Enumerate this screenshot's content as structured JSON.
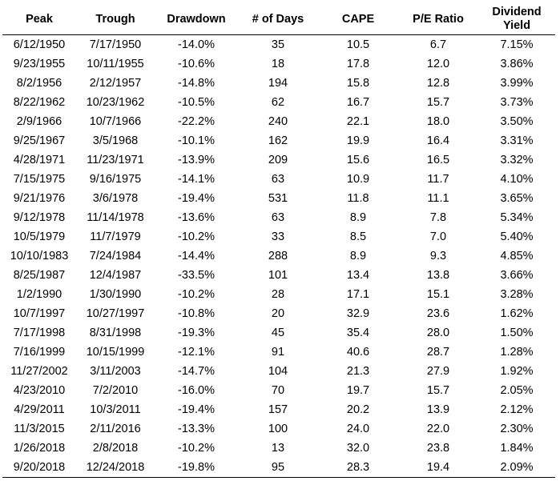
{
  "table": {
    "headers": [
      "Peak",
      "Trough",
      "Drawdown",
      "# of Days",
      "CAPE",
      "P/E Ratio",
      "Dividend Yield"
    ],
    "rows": [
      [
        "6/12/1950",
        "7/17/1950",
        "-14.0%",
        "35",
        "10.5",
        "6.7",
        "7.15%"
      ],
      [
        "9/23/1955",
        "10/11/1955",
        "-10.6%",
        "18",
        "17.8",
        "12.0",
        "3.86%"
      ],
      [
        "8/2/1956",
        "2/12/1957",
        "-14.8%",
        "194",
        "15.8",
        "12.8",
        "3.99%"
      ],
      [
        "8/22/1962",
        "10/23/1962",
        "-10.5%",
        "62",
        "16.7",
        "15.7",
        "3.73%"
      ],
      [
        "2/9/1966",
        "10/7/1966",
        "-22.2%",
        "240",
        "22.1",
        "18.0",
        "3.50%"
      ],
      [
        "9/25/1967",
        "3/5/1968",
        "-10.1%",
        "162",
        "19.9",
        "16.4",
        "3.31%"
      ],
      [
        "4/28/1971",
        "11/23/1971",
        "-13.9%",
        "209",
        "15.6",
        "16.5",
        "3.32%"
      ],
      [
        "7/15/1975",
        "9/16/1975",
        "-14.1%",
        "63",
        "10.9",
        "11.7",
        "4.10%"
      ],
      [
        "9/21/1976",
        "3/6/1978",
        "-19.4%",
        "531",
        "11.8",
        "11.1",
        "3.65%"
      ],
      [
        "9/12/1978",
        "11/14/1978",
        "-13.6%",
        "63",
        "8.9",
        "7.8",
        "5.34%"
      ],
      [
        "10/5/1979",
        "11/7/1979",
        "-10.2%",
        "33",
        "8.5",
        "7.0",
        "5.40%"
      ],
      [
        "10/10/1983",
        "7/24/1984",
        "-14.4%",
        "288",
        "8.9",
        "9.3",
        "4.85%"
      ],
      [
        "8/25/1987",
        "12/4/1987",
        "-33.5%",
        "101",
        "13.4",
        "13.8",
        "3.66%"
      ],
      [
        "1/2/1990",
        "1/30/1990",
        "-10.2%",
        "28",
        "17.1",
        "15.1",
        "3.28%"
      ],
      [
        "10/7/1997",
        "10/27/1997",
        "-10.8%",
        "20",
        "32.9",
        "23.6",
        "1.62%"
      ],
      [
        "7/17/1998",
        "8/31/1998",
        "-19.3%",
        "45",
        "35.4",
        "28.0",
        "1.50%"
      ],
      [
        "7/16/1999",
        "10/15/1999",
        "-12.1%",
        "91",
        "40.6",
        "28.7",
        "1.28%"
      ],
      [
        "11/27/2002",
        "3/11/2003",
        "-14.7%",
        "104",
        "21.3",
        "27.9",
        "1.92%"
      ],
      [
        "4/23/2010",
        "7/2/2010",
        "-16.0%",
        "70",
        "19.7",
        "15.7",
        "2.05%"
      ],
      [
        "4/29/2011",
        "10/3/2011",
        "-19.4%",
        "157",
        "20.2",
        "13.9",
        "2.12%"
      ],
      [
        "11/3/2015",
        "2/11/2016",
        "-13.3%",
        "100",
        "24.0",
        "22.0",
        "2.30%"
      ],
      [
        "1/26/2018",
        "2/8/2018",
        "-10.2%",
        "13",
        "32.0",
        "23.8",
        "1.84%"
      ],
      [
        "9/20/2018",
        "12/24/2018",
        "-19.8%",
        "95",
        "28.3",
        "19.4",
        "2.09%"
      ]
    ]
  }
}
